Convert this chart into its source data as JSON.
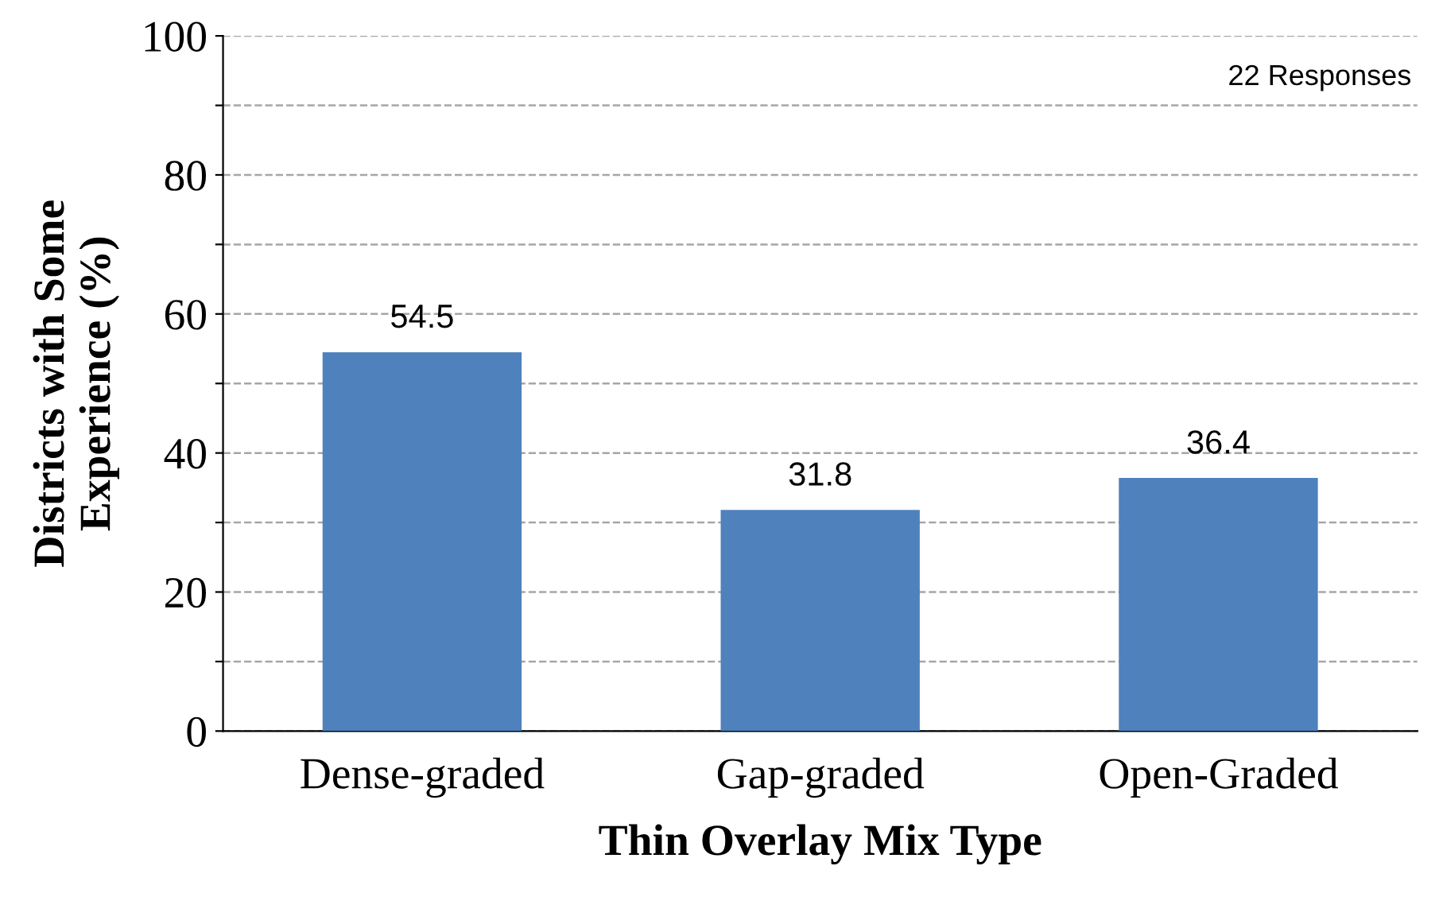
{
  "chart_data": {
    "type": "bar",
    "xlabel": "Thin Overlay Mix Type",
    "ylabel": "Districts with Some\nExperience (%)",
    "categories": [
      "Dense-graded",
      "Gap-graded",
      "Open-Graded"
    ],
    "values": [
      54.5,
      31.8,
      36.4
    ],
    "color": "#4f81bd",
    "ylim": [
      0,
      100
    ],
    "yticks": [
      0,
      {
        "value": 10,
        "label": null
      },
      20,
      {
        "value": 30,
        "label": null
      },
      40,
      {
        "value": 50,
        "label": null
      },
      60,
      {
        "value": 70,
        "label": null
      },
      80,
      {
        "value": 90,
        "label": null
      },
      100
    ],
    "grid": "y",
    "data_labels": true,
    "annotations": [
      "22 Responses"
    ]
  }
}
